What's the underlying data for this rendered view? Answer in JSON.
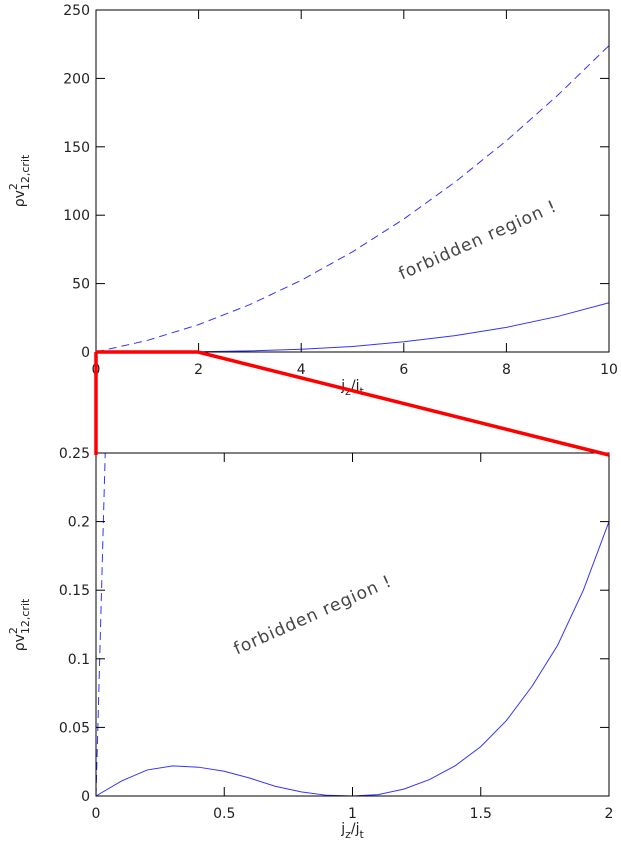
{
  "chart_data": [
    {
      "type": "line",
      "xlabel": [
        "j",
        "z",
        "/j",
        "t"
      ],
      "ylabel": [
        "ρv",
        "2",
        "12,crit"
      ],
      "annotation": "forbidden region !",
      "xlim": [
        0,
        10
      ],
      "ylim": [
        0,
        250
      ],
      "xticks": [
        0,
        2,
        4,
        6,
        8,
        10
      ],
      "yticks": [
        0,
        50,
        100,
        150,
        200,
        250
      ],
      "grid": false,
      "series": [
        {
          "color": "#3333ff",
          "dashed": true,
          "x": [
            0,
            1,
            2,
            3,
            4,
            5,
            6,
            7,
            8,
            9,
            10
          ],
          "values": [
            0,
            8.45,
            20,
            34.65,
            52.4,
            73.25,
            97.2,
            124.25,
            154.4,
            187.65,
            224
          ]
        },
        {
          "color": "#3333ff",
          "dashed": false,
          "x": [
            0,
            1,
            2,
            3,
            4,
            5,
            6,
            7,
            8,
            9,
            10
          ],
          "values": [
            0,
            0.02,
            0.2,
            0.8,
            2,
            4,
            7.5,
            12,
            18,
            26,
            36
          ]
        }
      ]
    },
    {
      "type": "line",
      "xlabel": [
        "j",
        "z",
        "/j",
        "t"
      ],
      "ylabel": [
        "ρv",
        "2",
        "12,crit"
      ],
      "annotation": "forbidden region !",
      "xlim": [
        0,
        2
      ],
      "ylim": [
        0,
        0.25
      ],
      "xticks": [
        0,
        0.5,
        1,
        1.5,
        2
      ],
      "yticks": [
        0,
        0.05,
        0.1,
        0.15,
        0.2,
        0.25
      ],
      "grid": false,
      "series": [
        {
          "color": "#3333ff",
          "dashed": true,
          "x": [
            0,
            0.01,
            0.02,
            0.03,
            0.036
          ],
          "values": [
            0,
            0.069,
            0.139,
            0.209,
            0.25
          ]
        },
        {
          "color": "#3333ff",
          "dashed": false,
          "x": [
            0,
            0.1,
            0.2,
            0.3,
            0.4,
            0.5,
            0.6,
            0.7,
            0.8,
            0.9,
            1,
            1.1,
            1.2,
            1.3,
            1.4,
            1.5,
            1.6,
            1.7,
            1.8,
            1.9,
            2
          ],
          "values": [
            0,
            0.011,
            0.019,
            0.022,
            0.021,
            0.018,
            0.013,
            0.007,
            0.003,
            0.0005,
            0,
            0.001,
            0.005,
            0.012,
            0.022,
            0.036,
            0.055,
            0.08,
            0.11,
            0.15,
            0.2
          ]
        }
      ]
    }
  ]
}
